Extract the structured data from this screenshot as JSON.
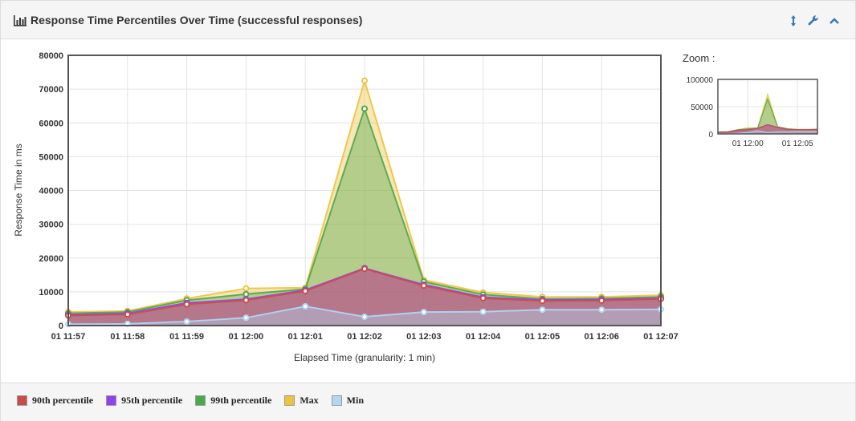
{
  "header": {
    "title": "Response Time Percentiles Over Time (successful responses)",
    "icons": [
      "bar-chart-icon",
      "resize-vertical-icon",
      "wrench-icon",
      "chevron-up-icon"
    ]
  },
  "zoom_label": "Zoom :",
  "colors": {
    "p90": "#cb4b4b",
    "p95": "#9440ed",
    "p99": "#4da74d",
    "max": "#edc240",
    "min": "#afd8f8",
    "accent": "#337ab7"
  },
  "legend": [
    {
      "label": "90th percentile",
      "color": "#cb4b4b"
    },
    {
      "label": "95th percentile",
      "color": "#9440ed"
    },
    {
      "label": "99th percentile",
      "color": "#4da74d"
    },
    {
      "label": "Max",
      "color": "#edc240"
    },
    {
      "label": "Min",
      "color": "#afd8f8"
    }
  ],
  "chart_data": {
    "type": "area",
    "title": "Response Time Percentiles Over Time (successful responses)",
    "xlabel": "Elapsed Time (granularity: 1 min)",
    "ylabel": "Response Time in ms",
    "ylim": [
      0,
      80000
    ],
    "yticks": [
      "0",
      "10000",
      "20000",
      "30000",
      "40000",
      "50000",
      "60000",
      "70000",
      "80000"
    ],
    "categories": [
      "01 11:57",
      "01 11:58",
      "01 11:59",
      "01 12:00",
      "01 12:01",
      "01 12:02",
      "01 12:03",
      "01 12:04",
      "01 12:05",
      "01 12:06",
      "01 12:07"
    ],
    "grid": true,
    "legend_position": "bottom",
    "series": [
      {
        "name": "Max",
        "values": [
          4000,
          4300,
          8000,
          11000,
          11200,
          72500,
          13500,
          9800,
          8500,
          8500,
          9000
        ]
      },
      {
        "name": "99th percentile",
        "values": [
          3600,
          4000,
          7500,
          9300,
          10800,
          64200,
          13000,
          9200,
          7900,
          8000,
          8500
        ]
      },
      {
        "name": "95th percentile",
        "values": [
          3200,
          3600,
          6700,
          7800,
          10500,
          17000,
          12100,
          8400,
          7600,
          7700,
          8100
        ]
      },
      {
        "name": "90th percentile",
        "values": [
          3000,
          3300,
          6300,
          7500,
          10200,
          16800,
          11800,
          8100,
          7300,
          7400,
          7900
        ]
      },
      {
        "name": "Min",
        "values": [
          400,
          500,
          1200,
          2300,
          5700,
          2600,
          4000,
          4100,
          4700,
          4700,
          4800
        ]
      }
    ],
    "overview": {
      "ylim": [
        0,
        100000
      ],
      "yticks": [
        "0",
        "50000",
        "100000"
      ],
      "xticks": [
        "01 12:00",
        "01 12:05"
      ]
    }
  }
}
